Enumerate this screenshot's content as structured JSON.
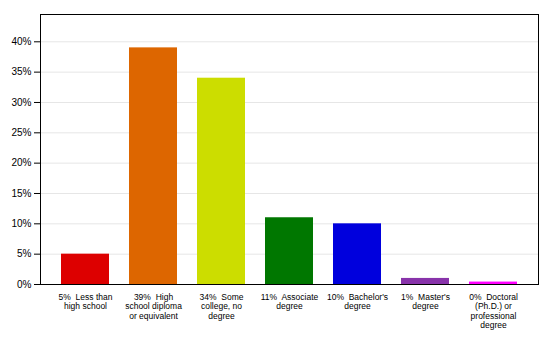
{
  "chart_data": {
    "type": "bar",
    "categories": [
      "5%  Less than\nhigh school",
      "39%  High\nschool diploma\nor equivalent",
      "34%  Some\ncollege, no\ndegree",
      "11%  Associate\ndegree",
      "10%  Bachelor's\ndegree",
      "1%  Master's\ndegree",
      "0%  Doctoral\n(Ph.D.) or\nprofessional\ndegree"
    ],
    "values": [
      5,
      39,
      34,
      11,
      10,
      1,
      0.4
    ],
    "colors": [
      "#dd0000",
      "#dd6600",
      "#ccdd00",
      "#007700",
      "#0000dd",
      "#8833aa",
      "#ff00ff"
    ],
    "ylim": [
      0,
      44.5
    ],
    "yticks": [
      {
        "value": 0,
        "label": "0%"
      },
      {
        "value": 5,
        "label": "5%"
      },
      {
        "value": 10,
        "label": "10%"
      },
      {
        "value": 15,
        "label": "15%"
      },
      {
        "value": 20,
        "label": "20%"
      },
      {
        "value": 25,
        "label": "25%"
      },
      {
        "value": 30,
        "label": "30%"
      },
      {
        "value": 35,
        "label": "35%"
      },
      {
        "value": 40,
        "label": "40%"
      }
    ],
    "grid": true
  }
}
